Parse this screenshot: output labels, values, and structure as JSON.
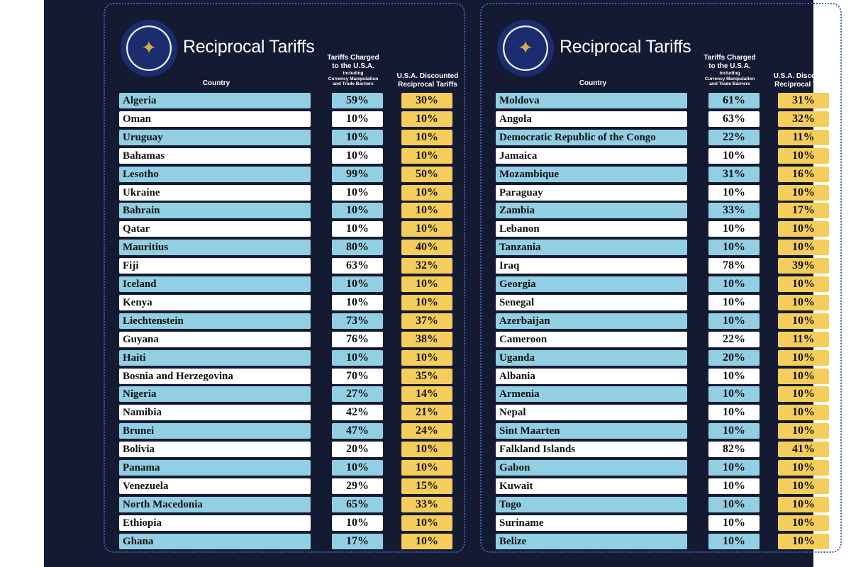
{
  "panels": [
    {
      "title": "Reciprocal Tariffs",
      "seal_icon": "presidential-seal-icon",
      "headers": {
        "country": "Country",
        "charged_main": "Tariffs Charged to the U.S.A.",
        "charged_line1": "Tariffs Charged",
        "charged_line2": "to the U.S.A.",
        "charged_sub1": "Including",
        "charged_sub2": "Currency Manipulation",
        "charged_sub3": "and Trade Barriers",
        "discounted_line1": "U.S.A. Discounted",
        "discounted_line2": "Reciprocal Tariffs"
      },
      "rows": [
        {
          "country": "Algeria",
          "charged": "59%",
          "discounted": "30%"
        },
        {
          "country": "Oman",
          "charged": "10%",
          "discounted": "10%"
        },
        {
          "country": "Uruguay",
          "charged": "10%",
          "discounted": "10%"
        },
        {
          "country": "Bahamas",
          "charged": "10%",
          "discounted": "10%"
        },
        {
          "country": "Lesotho",
          "charged": "99%",
          "discounted": "50%"
        },
        {
          "country": "Ukraine",
          "charged": "10%",
          "discounted": "10%"
        },
        {
          "country": "Bahrain",
          "charged": "10%",
          "discounted": "10%"
        },
        {
          "country": "Qatar",
          "charged": "10%",
          "discounted": "10%"
        },
        {
          "country": "Mauritius",
          "charged": "80%",
          "discounted": "40%"
        },
        {
          "country": "Fiji",
          "charged": "63%",
          "discounted": "32%"
        },
        {
          "country": "Iceland",
          "charged": "10%",
          "discounted": "10%"
        },
        {
          "country": "Kenya",
          "charged": "10%",
          "discounted": "10%"
        },
        {
          "country": "Liechtenstein",
          "charged": "73%",
          "discounted": "37%"
        },
        {
          "country": "Guyana",
          "charged": "76%",
          "discounted": "38%"
        },
        {
          "country": "Haiti",
          "charged": "10%",
          "discounted": "10%"
        },
        {
          "country": "Bosnia and Herzegovina",
          "charged": "70%",
          "discounted": "35%"
        },
        {
          "country": "Nigeria",
          "charged": "27%",
          "discounted": "14%"
        },
        {
          "country": "Namibia",
          "charged": "42%",
          "discounted": "21%"
        },
        {
          "country": "Brunei",
          "charged": "47%",
          "discounted": "24%"
        },
        {
          "country": "Bolivia",
          "charged": "20%",
          "discounted": "10%"
        },
        {
          "country": "Panama",
          "charged": "10%",
          "discounted": "10%"
        },
        {
          "country": "Venezuela",
          "charged": "29%",
          "discounted": "15%"
        },
        {
          "country": "North Macedonia",
          "charged": "65%",
          "discounted": "33%"
        },
        {
          "country": "Ethiopia",
          "charged": "10%",
          "discounted": "10%"
        },
        {
          "country": "Ghana",
          "charged": "17%",
          "discounted": "10%"
        }
      ]
    },
    {
      "title": "Reciprocal Tariffs",
      "seal_icon": "presidential-seal-icon",
      "headers": {
        "country": "Country",
        "charged_line1": "Tariffs Charged",
        "charged_line2": "to the U.S.A.",
        "charged_sub1": "Including",
        "charged_sub2": "Currency Manipulation",
        "charged_sub3": "and Trade Barriers",
        "discounted_line1": "U.S.A. Discounted",
        "discounted_line2": "Reciprocal Tariffs"
      },
      "rows": [
        {
          "country": "Moldova",
          "charged": "61%",
          "discounted": "31%"
        },
        {
          "country": "Angola",
          "charged": "63%",
          "discounted": "32%"
        },
        {
          "country": "Democratic Republic of the Congo",
          "charged": "22%",
          "discounted": "11%"
        },
        {
          "country": "Jamaica",
          "charged": "10%",
          "discounted": "10%"
        },
        {
          "country": "Mozambique",
          "charged": "31%",
          "discounted": "16%"
        },
        {
          "country": "Paraguay",
          "charged": "10%",
          "discounted": "10%"
        },
        {
          "country": "Zambia",
          "charged": "33%",
          "discounted": "17%"
        },
        {
          "country": "Lebanon",
          "charged": "10%",
          "discounted": "10%"
        },
        {
          "country": "Tanzania",
          "charged": "10%",
          "discounted": "10%"
        },
        {
          "country": "Iraq",
          "charged": "78%",
          "discounted": "39%"
        },
        {
          "country": "Georgia",
          "charged": "10%",
          "discounted": "10%"
        },
        {
          "country": "Senegal",
          "charged": "10%",
          "discounted": "10%"
        },
        {
          "country": "Azerbaijan",
          "charged": "10%",
          "discounted": "10%"
        },
        {
          "country": "Cameroon",
          "charged": "22%",
          "discounted": "11%"
        },
        {
          "country": "Uganda",
          "charged": "20%",
          "discounted": "10%"
        },
        {
          "country": "Albania",
          "charged": "10%",
          "discounted": "10%"
        },
        {
          "country": "Armenia",
          "charged": "10%",
          "discounted": "10%"
        },
        {
          "country": "Nepal",
          "charged": "10%",
          "discounted": "10%"
        },
        {
          "country": "Sint Maarten",
          "charged": "10%",
          "discounted": "10%"
        },
        {
          "country": "Falkland Islands",
          "charged": "82%",
          "discounted": "41%"
        },
        {
          "country": "Gabon",
          "charged": "10%",
          "discounted": "10%"
        },
        {
          "country": "Kuwait",
          "charged": "10%",
          "discounted": "10%"
        },
        {
          "country": "Togo",
          "charged": "10%",
          "discounted": "10%"
        },
        {
          "country": "Suriname",
          "charged": "10%",
          "discounted": "10%"
        },
        {
          "country": "Belize",
          "charged": "10%",
          "discounted": "10%"
        }
      ]
    }
  ],
  "colors": {
    "background": "#151a33",
    "row_blue": "#92cfe2",
    "row_white": "#ffffff",
    "discount_yellow": "#f5cd5b"
  }
}
